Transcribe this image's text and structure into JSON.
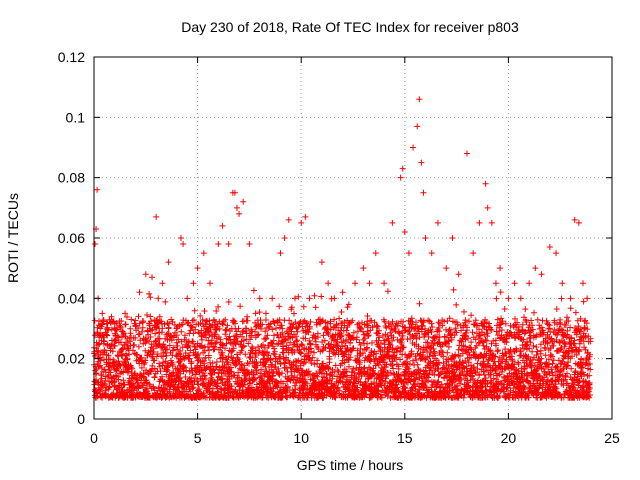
{
  "chart_data": {
    "type": "scatter",
    "title": "Day 230 of 2018, Rate Of TEC Index for receiver p803",
    "xlabel": "GPS time / hours",
    "ylabel": "ROTI / TECUs",
    "xlim": [
      0,
      25
    ],
    "ylim": [
      0,
      0.12
    ],
    "xticks": [
      0,
      5,
      10,
      15,
      20,
      25
    ],
    "xtick_labels": [
      "0",
      "5",
      "10",
      "15",
      "20",
      "25"
    ],
    "yticks": [
      0,
      0.02,
      0.04,
      0.06,
      0.08,
      0.1,
      0.12
    ],
    "ytick_labels": [
      "0",
      "0.02",
      "0.04",
      "0.06",
      "0.08",
      "0.1",
      "0.12"
    ],
    "grid": true,
    "marker": "plus",
    "color": "#ff0000",
    "series": [
      {
        "name": "ROTI",
        "x": [
          0.0,
          0.05,
          0.1,
          0.15,
          0.2,
          0.25,
          0.3,
          0.4,
          0.5,
          0.6,
          0.8,
          1.0,
          1.2,
          1.5,
          1.8,
          2.0,
          2.2,
          2.5,
          2.8,
          3.0,
          3.1,
          3.3,
          3.6,
          4.0,
          4.2,
          4.3,
          4.5,
          4.8,
          5.0,
          5.3,
          5.6,
          6.0,
          6.2,
          6.5,
          6.7,
          6.8,
          6.9,
          7.0,
          7.2,
          7.5,
          7.8,
          8.0,
          8.3,
          8.6,
          9.0,
          9.2,
          9.4,
          9.7,
          10.0,
          10.2,
          10.4,
          10.7,
          11.0,
          11.3,
          11.6,
          12.0,
          12.3,
          12.6,
          13.0,
          13.3,
          13.6,
          14.0,
          14.4,
          14.8,
          14.9,
          15.0,
          15.2,
          15.4,
          15.6,
          15.7,
          15.8,
          15.9,
          16.0,
          16.3,
          16.6,
          17.0,
          17.3,
          17.6,
          18.0,
          18.3,
          18.6,
          18.9,
          19.0,
          19.2,
          19.4,
          19.6,
          20.0,
          20.3,
          20.6,
          21.0,
          21.3,
          21.6,
          22.0,
          22.3,
          22.6,
          23.0,
          23.2,
          23.4,
          23.6,
          23.8
        ],
        "y": [
          0.018,
          0.058,
          0.063,
          0.076,
          0.04,
          0.025,
          0.03,
          0.035,
          0.022,
          0.028,
          0.032,
          0.03,
          0.027,
          0.035,
          0.033,
          0.031,
          0.042,
          0.048,
          0.047,
          0.067,
          0.04,
          0.045,
          0.052,
          0.03,
          0.06,
          0.058,
          0.04,
          0.045,
          0.05,
          0.055,
          0.045,
          0.058,
          0.064,
          0.058,
          0.075,
          0.075,
          0.07,
          0.068,
          0.072,
          0.058,
          0.035,
          0.04,
          0.035,
          0.04,
          0.055,
          0.06,
          0.066,
          0.04,
          0.065,
          0.067,
          0.04,
          0.037,
          0.052,
          0.045,
          0.04,
          0.042,
          0.038,
          0.045,
          0.05,
          0.045,
          0.055,
          0.045,
          0.065,
          0.08,
          0.083,
          0.062,
          0.055,
          0.09,
          0.097,
          0.106,
          0.085,
          0.075,
          0.06,
          0.055,
          0.065,
          0.05,
          0.06,
          0.048,
          0.088,
          0.055,
          0.065,
          0.078,
          0.07,
          0.065,
          0.045,
          0.05,
          0.04,
          0.045,
          0.04,
          0.045,
          0.05,
          0.048,
          0.057,
          0.055,
          0.045,
          0.04,
          0.066,
          0.065,
          0.045,
          0.04
        ]
      }
    ]
  }
}
